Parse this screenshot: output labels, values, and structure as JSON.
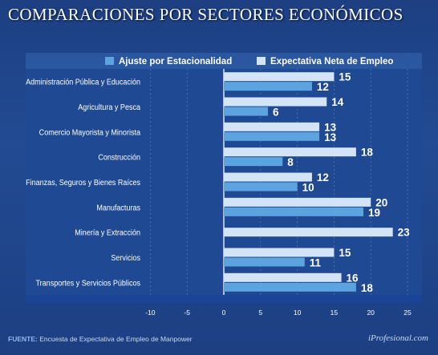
{
  "title": "COMPARACIONES POR SECTORES ECONÓMICOS",
  "source_label": "FUENTE:",
  "source_text": "Encuesta de Expectativa de Empleo de Manpower",
  "brand": "iProfesional.com",
  "colors": {
    "background": "#1d3f82",
    "plot_background": "#1f4a93",
    "legend_bar": "#2b57a0",
    "axis_band": "#1a4596",
    "light_series": "#d4e4f7",
    "dark_series": "#5ba4e0",
    "grid": "#9fb6d6"
  },
  "chart_data": {
    "type": "bar",
    "orientation": "horizontal",
    "title": "COMPARACIONES POR SECTORES ECONÓMICOS",
    "categories": [
      "Administración Pública y Educación",
      "Agricultura y Pesca",
      "Comercio Mayorista y Minorista",
      "Construcción",
      "Finanzas, Seguros y Bienes Raíces",
      "Manufacturas",
      "Minería y Extracción",
      "Servicios",
      "Transportes y Servicios Públicos"
    ],
    "series": [
      {
        "name": "Expectativa Neta de Empleo",
        "color": "#d4e4f7",
        "values": [
          15,
          14,
          13,
          18,
          12,
          20,
          23,
          15,
          16
        ]
      },
      {
        "name": "Ajuste por Estacionalidad",
        "color": "#5ba4e0",
        "values": [
          12,
          6,
          13,
          8,
          10,
          19,
          null,
          11,
          18
        ]
      }
    ],
    "xlim": [
      -10,
      25
    ],
    "xticks": [
      -10,
      -5,
      0,
      5,
      10,
      15,
      20,
      25
    ],
    "grid": true,
    "legend": "top-right"
  }
}
